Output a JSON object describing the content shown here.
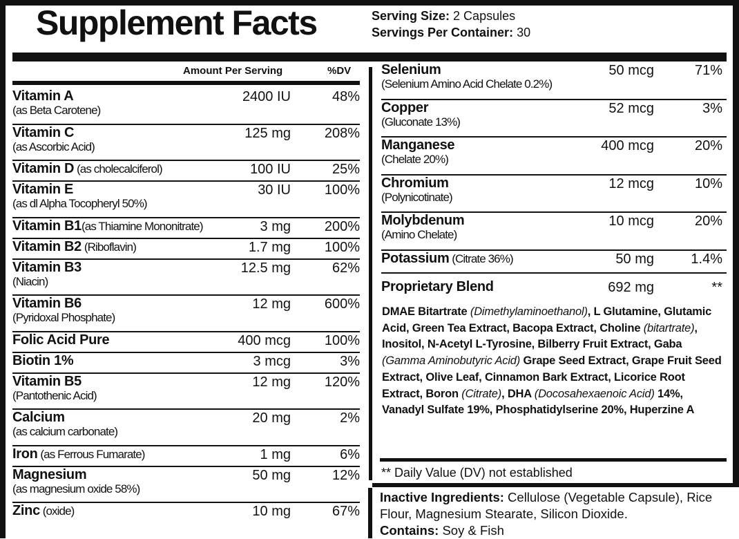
{
  "title": "Supplement Facts",
  "serving": {
    "size_label": "Serving Size:",
    "size_value": " 2 Capsules",
    "per_container_label": "Servings Per Container:",
    "per_container_value": " 30"
  },
  "headers": {
    "amount": "Amount Per Serving",
    "dv": "%DV"
  },
  "left_rows": [
    {
      "name": "Vitamin A",
      "form": "(as Beta Carotene)",
      "amount": "2400 IU",
      "dv": "48%"
    },
    {
      "name": "Vitamin C",
      "form": "(as Ascorbic Acid)",
      "amount": "125 mg",
      "dv": "208%"
    },
    {
      "name": "Vitamin D",
      "inline_form": " (as cholecalciferol)",
      "amount": "100 IU",
      "dv": "25%"
    },
    {
      "name": "Vitamin E",
      "form": "(as dl Alpha Tocopheryl 50%)",
      "amount": "30 IU",
      "dv": "100%"
    },
    {
      "name": "Vitamin B1",
      "inline_form": "(as Thiamine Mononitrate)",
      "amount": "3 mg",
      "dv": "200%"
    },
    {
      "name": "Vitamin B2",
      "inline_form": " (Riboflavin)",
      "amount": "1.7 mg",
      "dv": "100%"
    },
    {
      "name": "Vitamin B3",
      "form": "(Niacin)",
      "amount": "12.5 mg",
      "dv": "62%"
    },
    {
      "name": "Vitamin B6",
      "form": "(Pyridoxal Phosphate)",
      "amount": "12 mg",
      "dv": "600%"
    },
    {
      "name": "Folic Acid Pure",
      "amount": "400 mcg",
      "dv": "100%"
    },
    {
      "name": "Biotin 1%",
      "amount": "3 mcg",
      "dv": "3%"
    },
    {
      "name": "Vitamin B5",
      "form": "(Pantothenic Acid)",
      "amount": "12 mg",
      "dv": "120%"
    },
    {
      "name": "Calcium",
      "form": "(as calcium carbonate)",
      "amount": "20 mg",
      "dv": "2%"
    },
    {
      "name": "Iron",
      "inline_form": " (as Ferrous Fumarate)",
      "amount": "1 mg",
      "dv": "6%"
    },
    {
      "name": "Magnesium",
      "form": "(as magnesium oxide 58%)",
      "amount": "50 mg",
      "dv": "12%"
    },
    {
      "name": "Zinc",
      "inline_form": " (oxide)",
      "amount": "10 mg",
      "dv": "67%"
    }
  ],
  "right_rows": [
    {
      "name": "Selenium",
      "form": "(Selenium Amino Acid Chelate 0.2%)",
      "amount": "50 mcg",
      "dv": "71%"
    },
    {
      "name": "Copper",
      "form": "(Gluconate 13%)",
      "amount": "52 mcg",
      "dv": "3%"
    },
    {
      "name": "Manganese",
      "form": "(Chelate 20%)",
      "amount": "400 mcg",
      "dv": "20%"
    },
    {
      "name": "Chromium",
      "form": "(Polynicotinate)",
      "amount": "12 mcg",
      "dv": "10%"
    },
    {
      "name": "Molybdenum",
      "form": "(Amino Chelate)",
      "amount": "10 mcg",
      "dv": "20%"
    },
    {
      "name": "Potassium",
      "inline_form": " (Citrate 36%)",
      "amount": "50 mg",
      "dv": "1.4%"
    },
    {
      "name": "Proprietary Blend",
      "amount": "692 mg",
      "dv": "**"
    }
  ],
  "blend_ingredients": [
    {
      "text": "DMAE Bitartrate ",
      "italic": false
    },
    {
      "text": "(Dimethylaminoethanol)",
      "italic": true
    },
    {
      "text": ", L Glutamine, Glutamic Acid, Green Tea Extract, Bacopa Extract, Choline ",
      "italic": false
    },
    {
      "text": "(bitartrate)",
      "italic": true
    },
    {
      "text": ", Inositol, N-Acetyl L-Tyrosine, Bilberry Fruit Extract, Gaba ",
      "italic": false
    },
    {
      "text": "(Gamma Aminobutyric Acid)",
      "italic": true
    },
    {
      "text": " Grape Seed Extract, Grape Fruit Seed Extract, Olive Leaf, Cinnamon Bark Extract, Licorice Root Extract, Boron ",
      "italic": false
    },
    {
      "text": "(Citrate)",
      "italic": true
    },
    {
      "text": ", DHA ",
      "italic": false
    },
    {
      "text": "(Docosahexaenoic Acid)",
      "italic": true
    },
    {
      "text": " 14%, Vanadyl Sulfate 19%, Phosphatidylserine 20%, Huperzine A",
      "italic": false
    }
  ],
  "dv_note": "** Daily Value (DV) not established",
  "inactive": {
    "label": "Inactive Ingredients:",
    "value": " Cellulose (Vegetable Capsule), Rice Flour, Magnesium Stearate, Silicon Dioxide.",
    "contains_label": "Contains:",
    "contains_value": " Soy & Fish"
  }
}
